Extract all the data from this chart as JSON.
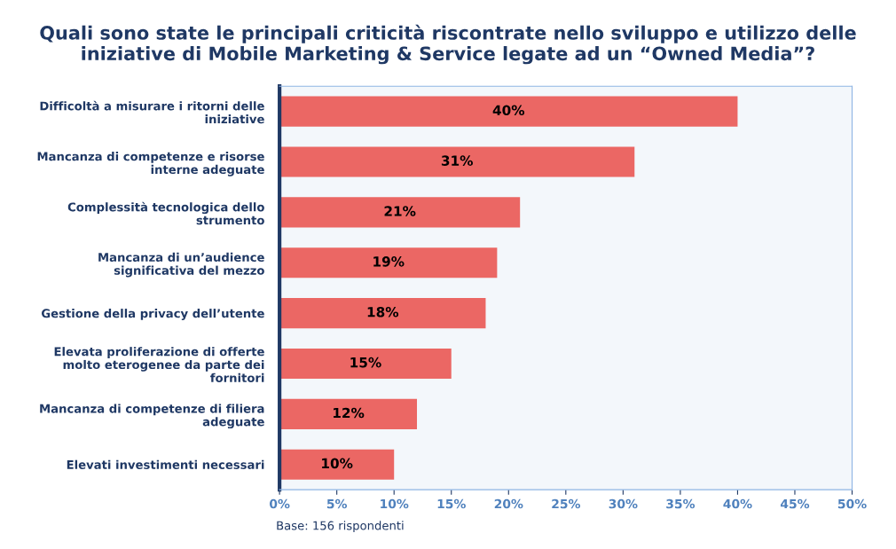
{
  "chart_data": {
    "type": "bar",
    "orientation": "horizontal",
    "title": "Quali sono state le principali criticità riscontrate nello sviluppo e utilizzo delle\niniziative di Mobile Marketing & Service legate ad un “Owned Media”?",
    "categories": [
      "Difficoltà a misurare i ritorni delle\niniziative",
      "Mancanza di competenze e risorse\ninterne adeguate",
      "Complessità tecnologica dello\nstrumento",
      "Mancanza di un’audience\nsignificativa del mezzo",
      "Gestione della privacy dell’utente",
      "Elevata proliferazione di offerte\nmolto eterogenee da parte dei\nfornitori",
      "Mancanza di competenze di filiera\nadeguate",
      "Elevati investimenti necessari"
    ],
    "values": [
      40,
      31,
      21,
      19,
      18,
      15,
      12,
      10
    ],
    "value_labels": [
      "40%",
      "31%",
      "21%",
      "19%",
      "18%",
      "15%",
      "12%",
      "10%"
    ],
    "color": "#eb6764",
    "xlim": [
      0,
      50
    ],
    "xticks": [
      {
        "value": 0,
        "label": "0%"
      },
      {
        "value": 5,
        "label": "5%"
      },
      {
        "value": 10,
        "label": "10%"
      },
      {
        "value": 15,
        "label": "15%"
      },
      {
        "value": 20,
        "label": "20%"
      },
      {
        "value": 25,
        "label": "25%"
      },
      {
        "value": 30,
        "label": "30%"
      },
      {
        "value": 35,
        "label": "35%"
      },
      {
        "value": 40,
        "label": "40%"
      },
      {
        "value": 45,
        "label": "45%"
      },
      {
        "value": 50,
        "label": "50%"
      }
    ],
    "grid": false,
    "legend": false,
    "annotations": [
      "Base: 156 rispondenti"
    ]
  }
}
